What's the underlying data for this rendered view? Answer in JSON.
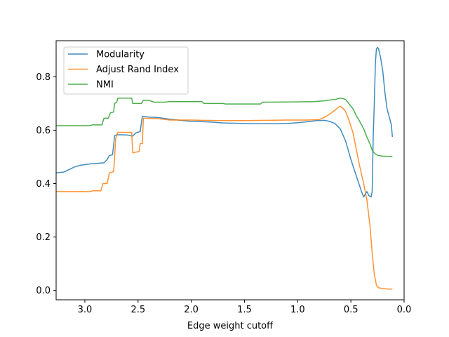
{
  "chart_data": {
    "type": "line",
    "xlabel": "Edge weight cutoff",
    "ylabel": "",
    "title": "",
    "xlim": [
      3.27,
      0.0
    ],
    "ylim": [
      -0.035,
      0.935
    ],
    "x_inverted": true,
    "xticks": [
      3.0,
      2.5,
      2.0,
      1.5,
      1.0,
      0.5,
      0.0
    ],
    "xtick_labels": [
      "3.0",
      "2.5",
      "2.0",
      "1.5",
      "1.0",
      "0.5",
      "0.0"
    ],
    "yticks": [
      0.0,
      0.2,
      0.4,
      0.6,
      0.8
    ],
    "ytick_labels": [
      "0.0",
      "0.2",
      "0.4",
      "0.6",
      "0.8"
    ],
    "grid": false,
    "legend_position": "upper-left",
    "series": [
      {
        "name": "Modularity",
        "color": "#1f77b4",
        "points": [
          [
            3.27,
            0.44
          ],
          [
            3.2,
            0.443
          ],
          [
            3.15,
            0.452
          ],
          [
            3.1,
            0.462
          ],
          [
            3.05,
            0.468
          ],
          [
            3.0,
            0.471
          ],
          [
            2.95,
            0.474
          ],
          [
            2.88,
            0.476
          ],
          [
            2.82,
            0.478
          ],
          [
            2.79,
            0.49
          ],
          [
            2.77,
            0.505
          ],
          [
            2.74,
            0.508
          ],
          [
            2.72,
            0.58
          ],
          [
            2.7,
            0.583
          ],
          [
            2.6,
            0.582
          ],
          [
            2.55,
            0.578
          ],
          [
            2.52,
            0.59
          ],
          [
            2.48,
            0.595
          ],
          [
            2.46,
            0.652
          ],
          [
            2.4,
            0.649
          ],
          [
            2.3,
            0.647
          ],
          [
            2.2,
            0.641
          ],
          [
            2.1,
            0.637
          ],
          [
            2.0,
            0.633
          ],
          [
            1.9,
            0.632
          ],
          [
            1.8,
            0.63
          ],
          [
            1.7,
            0.627
          ],
          [
            1.6,
            0.626
          ],
          [
            1.5,
            0.625
          ],
          [
            1.4,
            0.624
          ],
          [
            1.3,
            0.624
          ],
          [
            1.2,
            0.624
          ],
          [
            1.1,
            0.625
          ],
          [
            1.0,
            0.628
          ],
          [
            0.9,
            0.632
          ],
          [
            0.82,
            0.636
          ],
          [
            0.75,
            0.637
          ],
          [
            0.7,
            0.633
          ],
          [
            0.65,
            0.625
          ],
          [
            0.6,
            0.605
          ],
          [
            0.55,
            0.56
          ],
          [
            0.5,
            0.49
          ],
          [
            0.45,
            0.43
          ],
          [
            0.4,
            0.37
          ],
          [
            0.38,
            0.35
          ],
          [
            0.35,
            0.37
          ],
          [
            0.33,
            0.355
          ],
          [
            0.31,
            0.35
          ],
          [
            0.3,
            0.37
          ],
          [
            0.29,
            0.58
          ],
          [
            0.28,
            0.7
          ],
          [
            0.27,
            0.85
          ],
          [
            0.26,
            0.905
          ],
          [
            0.25,
            0.91
          ],
          [
            0.24,
            0.905
          ],
          [
            0.22,
            0.87
          ],
          [
            0.2,
            0.82
          ],
          [
            0.18,
            0.74
          ],
          [
            0.16,
            0.68
          ],
          [
            0.14,
            0.65
          ],
          [
            0.12,
            0.62
          ],
          [
            0.11,
            0.575
          ]
        ]
      },
      {
        "name": "Adjust Rand Index",
        "color": "#ff7f0e",
        "points": [
          [
            3.27,
            0.37
          ],
          [
            3.1,
            0.37
          ],
          [
            2.95,
            0.37
          ],
          [
            2.93,
            0.373
          ],
          [
            2.85,
            0.373
          ],
          [
            2.83,
            0.4
          ],
          [
            2.79,
            0.4
          ],
          [
            2.77,
            0.44
          ],
          [
            2.73,
            0.445
          ],
          [
            2.72,
            0.5
          ],
          [
            2.71,
            0.57
          ],
          [
            2.69,
            0.592
          ],
          [
            2.6,
            0.592
          ],
          [
            2.56,
            0.592
          ],
          [
            2.55,
            0.515
          ],
          [
            2.52,
            0.518
          ],
          [
            2.49,
            0.52
          ],
          [
            2.48,
            0.55
          ],
          [
            2.46,
            0.55
          ],
          [
            2.45,
            0.645
          ],
          [
            2.3,
            0.643
          ],
          [
            2.2,
            0.638
          ],
          [
            2.1,
            0.638
          ],
          [
            2.0,
            0.638
          ],
          [
            1.9,
            0.637
          ],
          [
            1.7,
            0.636
          ],
          [
            1.5,
            0.636
          ],
          [
            1.3,
            0.637
          ],
          [
            1.1,
            0.638
          ],
          [
            0.9,
            0.638
          ],
          [
            0.8,
            0.64
          ],
          [
            0.75,
            0.648
          ],
          [
            0.7,
            0.66
          ],
          [
            0.65,
            0.675
          ],
          [
            0.62,
            0.685
          ],
          [
            0.6,
            0.69
          ],
          [
            0.57,
            0.68
          ],
          [
            0.55,
            0.67
          ],
          [
            0.52,
            0.64
          ],
          [
            0.48,
            0.59
          ],
          [
            0.45,
            0.53
          ],
          [
            0.42,
            0.47
          ],
          [
            0.38,
            0.4
          ],
          [
            0.35,
            0.34
          ],
          [
            0.32,
            0.24
          ],
          [
            0.3,
            0.14
          ],
          [
            0.28,
            0.06
          ],
          [
            0.26,
            0.02
          ],
          [
            0.24,
            0.01
          ],
          [
            0.2,
            0.007
          ],
          [
            0.15,
            0.005
          ],
          [
            0.11,
            0.005
          ]
        ]
      },
      {
        "name": "NMI",
        "color": "#2ca02c",
        "points": [
          [
            3.27,
            0.617
          ],
          [
            3.05,
            0.617
          ],
          [
            2.95,
            0.617
          ],
          [
            2.93,
            0.62
          ],
          [
            2.84,
            0.62
          ],
          [
            2.82,
            0.645
          ],
          [
            2.78,
            0.645
          ],
          [
            2.76,
            0.665
          ],
          [
            2.73,
            0.668
          ],
          [
            2.72,
            0.7
          ],
          [
            2.7,
            0.705
          ],
          [
            2.69,
            0.72
          ],
          [
            2.56,
            0.72
          ],
          [
            2.55,
            0.7
          ],
          [
            2.47,
            0.7
          ],
          [
            2.45,
            0.712
          ],
          [
            2.4,
            0.712
          ],
          [
            2.35,
            0.705
          ],
          [
            2.25,
            0.705
          ],
          [
            2.2,
            0.707
          ],
          [
            1.9,
            0.707
          ],
          [
            1.88,
            0.7
          ],
          [
            1.7,
            0.7
          ],
          [
            1.68,
            0.698
          ],
          [
            1.35,
            0.698
          ],
          [
            1.33,
            0.705
          ],
          [
            1.0,
            0.706
          ],
          [
            0.85,
            0.707
          ],
          [
            0.75,
            0.71
          ],
          [
            0.7,
            0.713
          ],
          [
            0.65,
            0.715
          ],
          [
            0.6,
            0.72
          ],
          [
            0.57,
            0.718
          ],
          [
            0.55,
            0.715
          ],
          [
            0.52,
            0.7
          ],
          [
            0.48,
            0.68
          ],
          [
            0.45,
            0.655
          ],
          [
            0.42,
            0.635
          ],
          [
            0.38,
            0.605
          ],
          [
            0.35,
            0.575
          ],
          [
            0.32,
            0.548
          ],
          [
            0.3,
            0.525
          ],
          [
            0.27,
            0.51
          ],
          [
            0.24,
            0.505
          ],
          [
            0.2,
            0.503
          ],
          [
            0.15,
            0.502
          ],
          [
            0.11,
            0.502
          ]
        ]
      }
    ]
  }
}
